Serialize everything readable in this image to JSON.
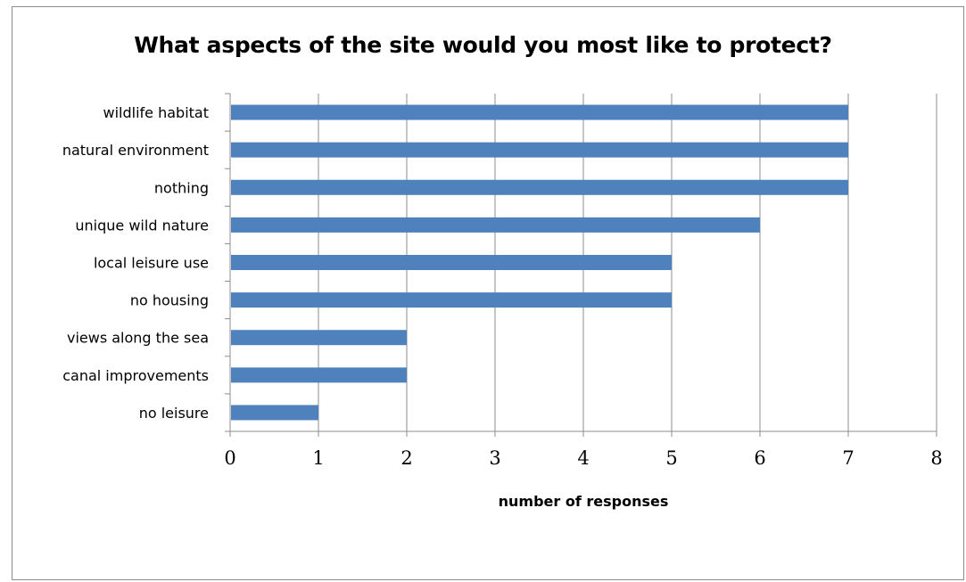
{
  "chart_data": {
    "type": "bar",
    "orientation": "horizontal",
    "title": "What aspects of the site would you most like to protect?",
    "xlabel": "number of responses",
    "ylabel": "",
    "categories": [
      "wildlife habitat",
      "natural environment",
      "nothing",
      "unique wild nature",
      "local leisure use",
      "no housing",
      "views along the sea",
      "canal improvements",
      "no leisure"
    ],
    "values": [
      7,
      7,
      7,
      6,
      5,
      5,
      2,
      2,
      1
    ],
    "xlim": [
      0,
      8
    ],
    "xticks": [
      "0",
      "1",
      "2",
      "3",
      "4",
      "5",
      "6",
      "7",
      "8"
    ],
    "grid": "vertical",
    "legend": "none",
    "bar_color": "#4f81bd"
  }
}
